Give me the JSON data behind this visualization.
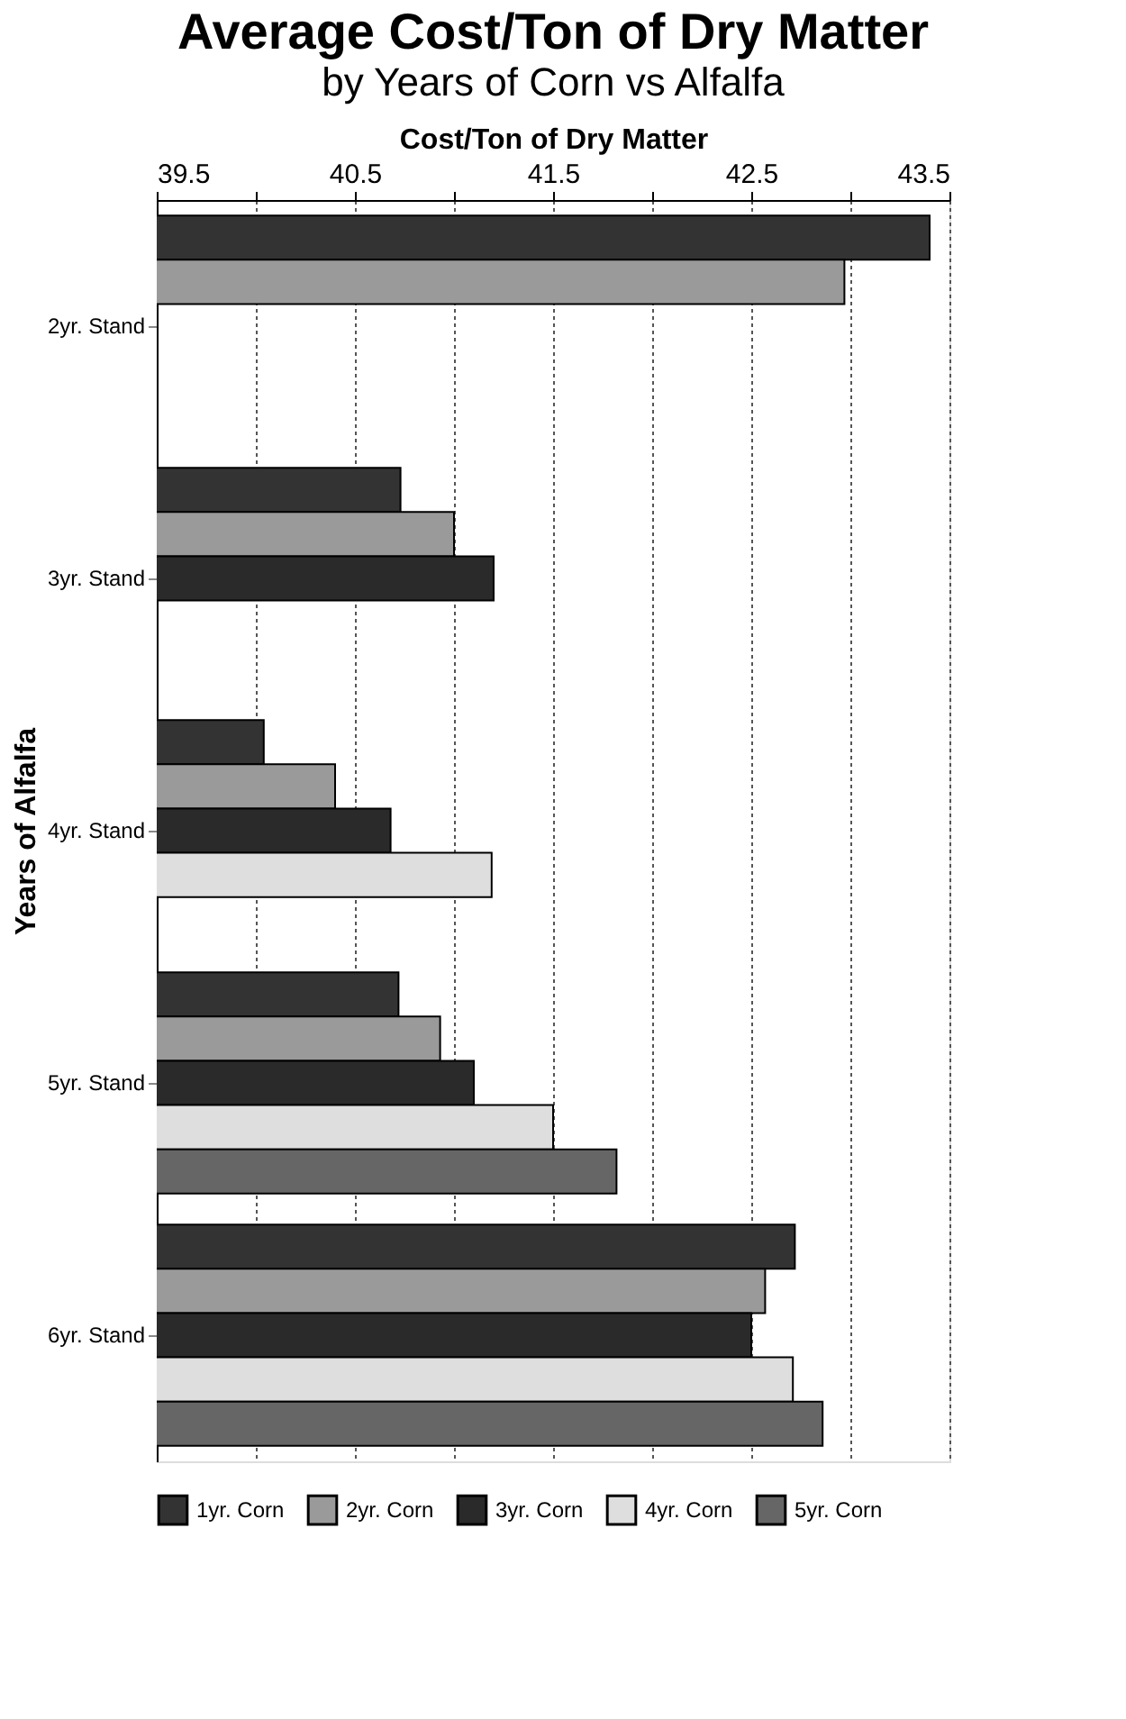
{
  "chart_data": {
    "type": "bar",
    "orientation": "horizontal",
    "title": "Average Cost/Ton of Dry Matter",
    "subtitle": "by Years of Corn vs Alfalfa",
    "xlabel": "Cost/Ton of Dry Matter",
    "ylabel": "Years of Alfalfa",
    "categories": [
      "2yr. Stand",
      "3yr. Stand",
      "4yr. Stand",
      "5yr. Stand",
      "6yr. Stand"
    ],
    "series": [
      {
        "name": "1yr. Corn",
        "color": "#333333",
        "values": [
          43.4,
          40.73,
          40.04,
          40.72,
          42.72
        ]
      },
      {
        "name": "2yr. Corn",
        "color": "#9a9a9a",
        "values": [
          42.97,
          41.0,
          40.4,
          40.93,
          42.57
        ]
      },
      {
        "name": "3yr. Corn",
        "color": "#2a2a2a",
        "values": [
          null,
          41.2,
          40.68,
          41.1,
          42.5
        ]
      },
      {
        "name": "4yr. Corn",
        "color": "#dedede",
        "values": [
          null,
          null,
          41.19,
          41.5,
          42.71
        ]
      },
      {
        "name": "5yr. Corn",
        "color": "#666666",
        "values": [
          null,
          null,
          null,
          41.82,
          42.86
        ]
      }
    ],
    "xlim": [
      39.5,
      43.5
    ],
    "xticks": [
      39.5,
      {
        "value": 40,
        "label": null
      },
      40.5,
      {
        "value": 41,
        "label": null
      },
      41.5,
      {
        "value": 42,
        "label": null
      },
      42.5,
      {
        "value": 43,
        "label": null
      },
      43.5
    ],
    "grid": "x",
    "legend": "bottom"
  }
}
